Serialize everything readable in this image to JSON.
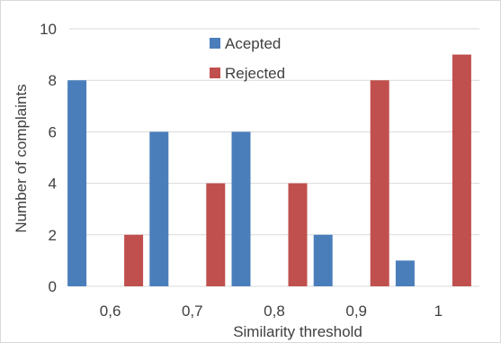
{
  "chart_data": {
    "type": "bar",
    "categories": [
      "0,6",
      "0,7",
      "0,8",
      "0,9",
      "1"
    ],
    "series": [
      {
        "name": "Acepted",
        "values": [
          8,
          6,
          6,
          2,
          1
        ],
        "color": "#4a7ebb"
      },
      {
        "name": "Rejected",
        "values": [
          2,
          4,
          4,
          8,
          9
        ],
        "color": "#c0504d"
      }
    ],
    "xlabel": "Similarity threshold",
    "ylabel": "Number of complaints",
    "ylim": [
      0,
      10
    ],
    "yticks": [
      0,
      2,
      4,
      6,
      8,
      10
    ],
    "grid": true,
    "legend_position": "top-center"
  }
}
